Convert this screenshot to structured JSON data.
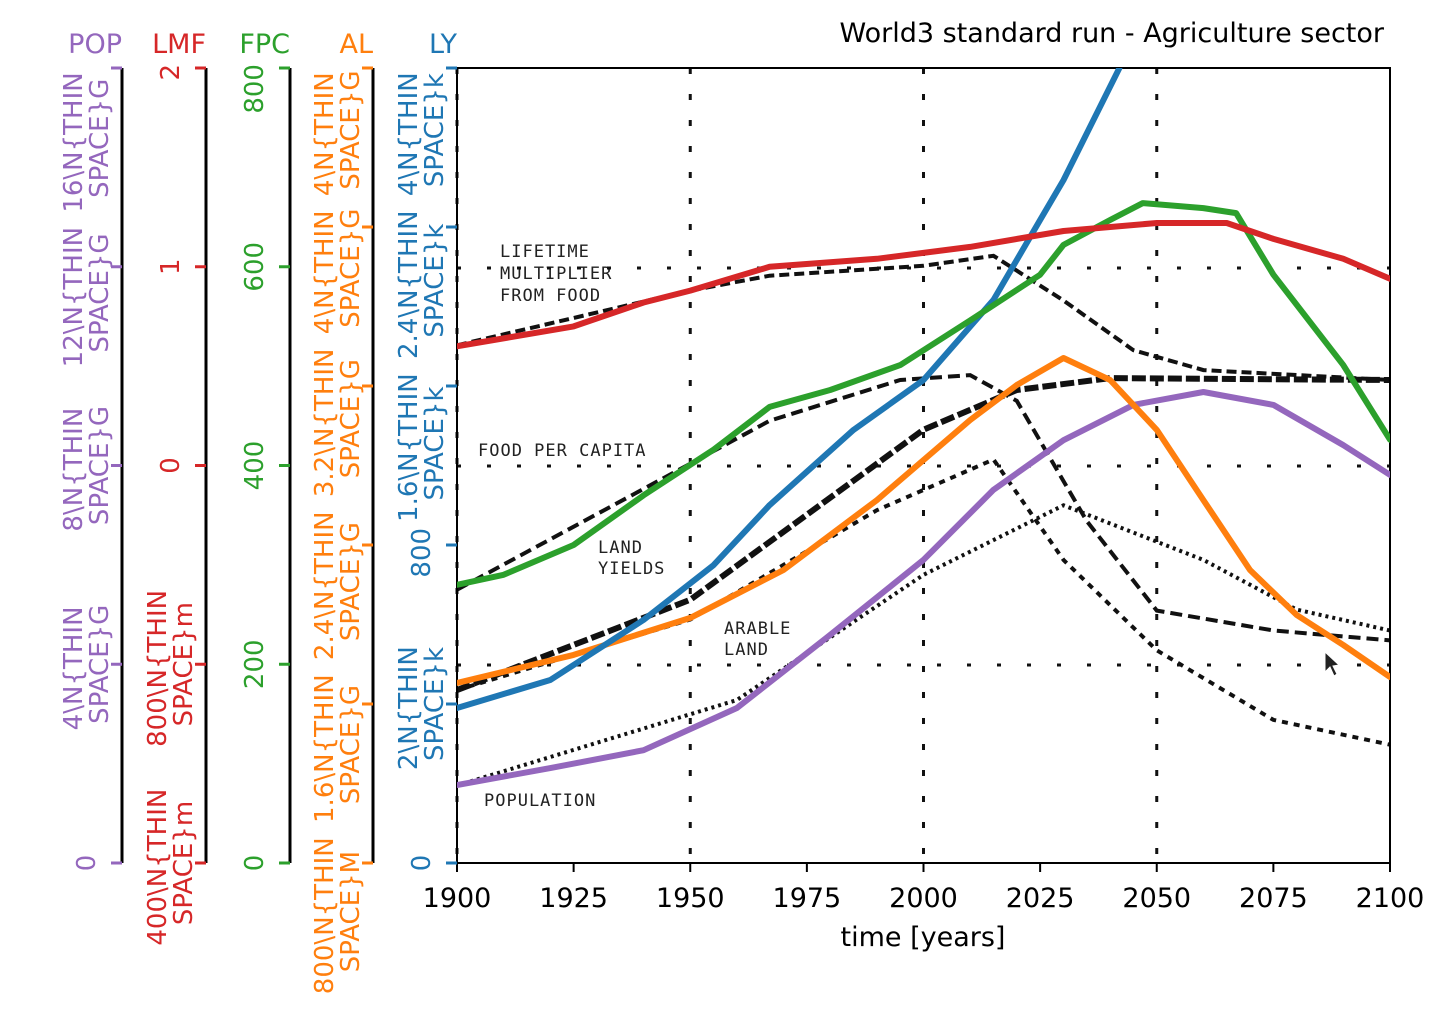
{
  "chart_data": {
    "type": "line",
    "title": "World3 standard run - Agriculture sector",
    "xlabel": "time [years]",
    "xlim": [
      1900,
      2100
    ],
    "xticks": [
      "1900",
      "1925",
      "1950",
      "1975",
      "2000",
      "2025",
      "2050",
      "2075",
      "2100"
    ],
    "grid": "dotted at 1950/2000/2050 and quarter heights (from scanned original)",
    "axes": [
      {
        "name": "POP",
        "color": "#9467bd",
        "ylim": [
          0,
          16
        ],
        "tick_labels": [
          "0",
          "4\\N{THIN SPACE}G",
          "8\\N{THIN SPACE}G",
          "12\\N{THIN SPACE}G",
          "16\\N{THIN SPACE}G"
        ]
      },
      {
        "name": "LMF",
        "color": "#d62728",
        "ylim": [
          0,
          2
        ],
        "tick_labels": [
          "400\\N{THIN SPACE}m",
          "800\\N{THIN SPACE}m",
          "0",
          "1",
          "2"
        ]
      },
      {
        "name": "FPC",
        "color": "#2ca02c",
        "ylim": [
          0,
          800
        ],
        "tick_labels": [
          "0",
          "200",
          "400",
          "600",
          "800"
        ]
      },
      {
        "name": "AL",
        "color": "#ff7f0e",
        "ylim": [
          0,
          4000
        ],
        "tick_labels": [
          "800\\N{THIN SPACE}M",
          "1.6\\N{THIN SPACE}G",
          "2.4\\N{THIN SPACE}G",
          "3.2\\N{THIN SPACE}G",
          "4\\N{THIN SPACE}G",
          "4\\N{THIN SPACE}G"
        ]
      },
      {
        "name": "LY",
        "color": "#1f77b4",
        "ylim": [
          0,
          4000
        ],
        "tick_labels": [
          "0",
          "2\\N{THIN SPACE}k",
          "800",
          "1.6\\N{THIN SPACE}k",
          "2.4\\N{THIN SPACE}k",
          "4\\N{THIN SPACE}k"
        ]
      }
    ],
    "series": [
      {
        "name": "POP",
        "axis": 0,
        "x": [
          1900,
          1920,
          1940,
          1960,
          1980,
          2000,
          2015,
          2030,
          2045,
          2060,
          2075,
          2090,
          2100
        ],
        "y": [
          1.57,
          1.91,
          2.27,
          3.12,
          4.59,
          6.1,
          7.51,
          8.51,
          9.22,
          9.48,
          9.22,
          8.41,
          7.81
        ]
      },
      {
        "name": "LMF",
        "axis": 1,
        "x": [
          1900,
          1925,
          1940,
          1950,
          1967,
          1990,
          2010,
          2030,
          2050,
          2065,
          2075,
          2090,
          2100
        ],
        "y": [
          1.3,
          1.35,
          1.41,
          1.44,
          1.5,
          1.52,
          1.55,
          1.59,
          1.61,
          1.61,
          1.57,
          1.52,
          1.47
        ]
      },
      {
        "name": "FPC",
        "axis": 2,
        "x": [
          1900,
          1910,
          1925,
          1940,
          1955,
          1967,
          1980,
          1995,
          2010,
          2025,
          2030,
          2040,
          2047,
          2060,
          2067,
          2075,
          2090,
          2100
        ],
        "y": [
          280,
          290,
          320,
          370,
          416,
          459,
          476,
          501,
          546,
          592,
          622,
          647,
          664,
          659,
          654,
          592,
          501,
          426
        ]
      },
      {
        "name": "AL",
        "axis": 3,
        "x": [
          1900,
          1925,
          1950,
          1970,
          1990,
          2010,
          2020,
          2030,
          2040,
          2050,
          2060,
          2070,
          2080,
          2090,
          2100
        ],
        "y": [
          906,
          1047,
          1233,
          1474,
          1826,
          2229,
          2405,
          2541,
          2430,
          2179,
          1826,
          1474,
          1248,
          1097,
          936
        ]
      },
      {
        "name": "LY",
        "axis": 4,
        "x": [
          1900,
          1920,
          1940,
          1955,
          1967,
          1985,
          2000,
          2015,
          2025,
          2030,
          2042
        ],
        "y": [
          780,
          921,
          1223,
          1499,
          1801,
          2179,
          2430,
          2833,
          3235,
          3436,
          4000
        ]
      }
    ],
    "reference_scan_curves": {
      "axis": 2,
      "curves": [
        {
          "x": [
            1900,
            1950,
            1967,
            2000,
            2015,
            2030,
            2045,
            2060,
            2100
          ],
          "y": [
            521,
            576,
            591,
            601,
            611,
            566,
            516,
            496,
            486
          ]
        },
        {
          "x": [
            1900,
            1967,
            1995,
            2010,
            2020,
            2035,
            2050,
            2075,
            2100
          ],
          "y": [
            275,
            445,
            486,
            491,
            465,
            344,
            254,
            234,
            224
          ]
        },
        {
          "x": [
            1900,
            1960,
            2000,
            2030,
            2060,
            2080,
            2100
          ],
          "y": [
            78,
            164,
            290,
            360,
            305,
            255,
            234
          ]
        },
        {
          "x": [
            1900,
            1950,
            2000,
            2020,
            2040,
            2100
          ],
          "y": [
            174,
            265,
            436,
            476,
            488,
            486
          ]
        },
        {
          "x": [
            1900,
            1950,
            1990,
            2015,
            2030,
            2050,
            2075,
            2100
          ],
          "y": [
            174,
            245,
            355,
            406,
            305,
            214,
            144,
            119
          ]
        }
      ],
      "annotations": [
        "LIFETIME",
        "MULTIPLIER",
        "FROM FOOD",
        "FOOD PER CAPITA",
        "LAND",
        "YIELDS",
        "ARABLE",
        "LAND",
        "POPULATION"
      ]
    }
  }
}
